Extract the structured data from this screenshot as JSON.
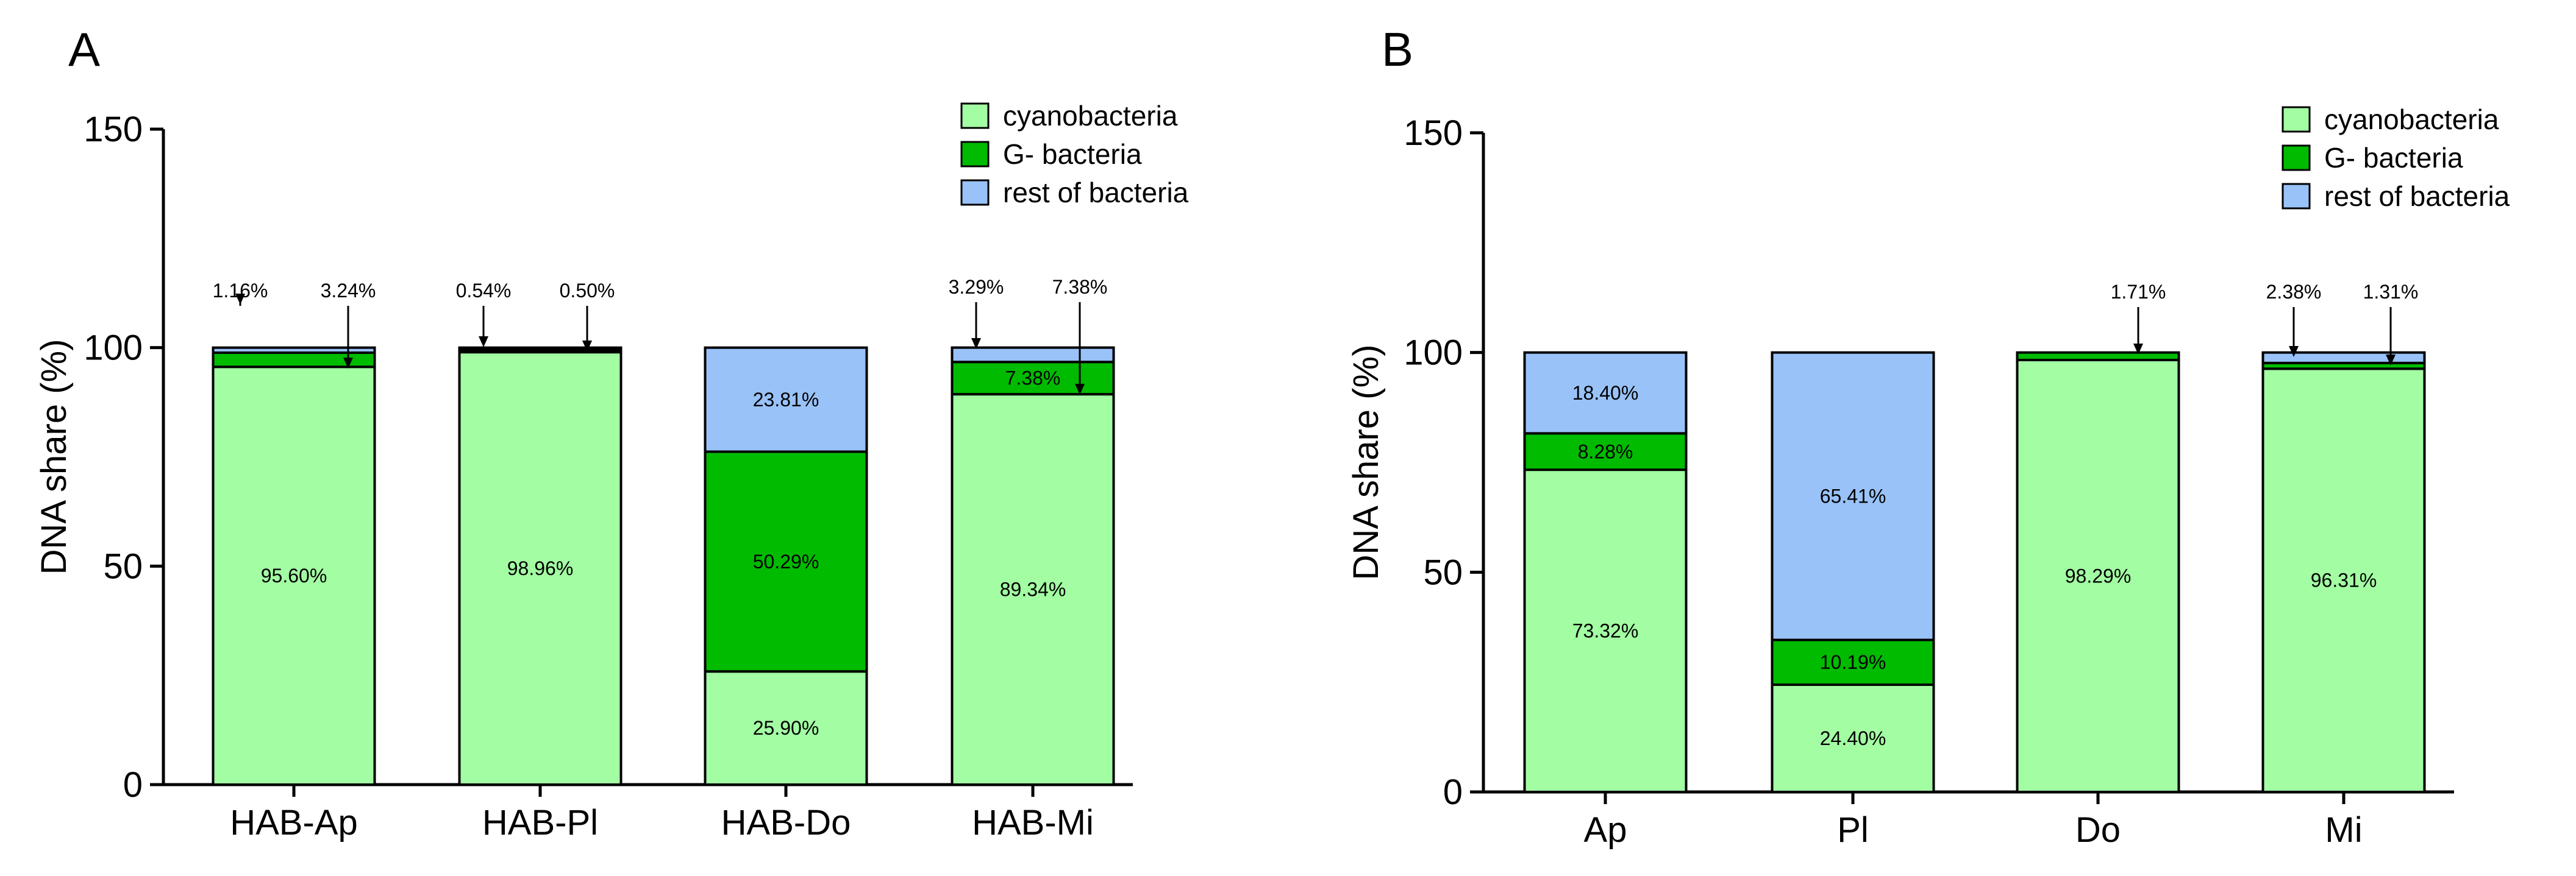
{
  "legend": {
    "items": [
      {
        "name": "cyanobacteria",
        "color": "#a3fda3"
      },
      {
        "name": "G- bacteria",
        "color": "#00bb00"
      },
      {
        "name": "rest of bacteria",
        "color": "#99c2f8"
      }
    ]
  },
  "chart_data": [
    {
      "type": "bar",
      "stacked": true,
      "panel": "A",
      "ylabel": "DNA share (%)",
      "xlabel": "",
      "ylim": [
        0,
        150
      ],
      "yticks": [
        "0",
        "50",
        "100",
        "150"
      ],
      "categories": [
        "HAB-Ap",
        "HAB-Pl",
        "HAB-Do",
        "HAB-Mi"
      ],
      "series": [
        {
          "name": "cyanobacteria",
          "values": [
            95.6,
            98.96,
            25.9,
            89.34
          ],
          "labels": [
            "95.60%",
            "98.96%",
            "25.90%",
            "89.34%"
          ]
        },
        {
          "name": "G- bacteria",
          "values": [
            3.24,
            0.5,
            50.29,
            7.38
          ],
          "labels": [
            "3.24%",
            "0.50%",
            "50.29%",
            "7.38%"
          ]
        },
        {
          "name": "rest of bacteria",
          "values": [
            1.16,
            0.54,
            23.81,
            3.29
          ],
          "labels": [
            "1.16%",
            "0.54%",
            "23.81%",
            "3.29%"
          ]
        }
      ]
    },
    {
      "type": "bar",
      "stacked": true,
      "panel": "B",
      "ylabel": "DNA share (%)",
      "xlabel": "",
      "ylim": [
        0,
        150
      ],
      "yticks": [
        "0",
        "50",
        "100",
        "150"
      ],
      "categories": [
        "Ap",
        "Pl",
        "Do",
        "Mi"
      ],
      "series": [
        {
          "name": "cyanobacteria",
          "values": [
            73.32,
            24.4,
            98.29,
            96.31
          ],
          "labels": [
            "73.32%",
            "24.40%",
            "98.29%",
            "96.31%"
          ]
        },
        {
          "name": "G- bacteria",
          "values": [
            8.28,
            10.19,
            1.71,
            1.31
          ],
          "labels": [
            "8.28%",
            "10.19%",
            "1.71%",
            "1.31%"
          ]
        },
        {
          "name": "rest of bacteria",
          "values": [
            18.4,
            65.41,
            0.0,
            2.38
          ],
          "labels": [
            "18.40%",
            "65.41%",
            "",
            "2.38%"
          ]
        }
      ]
    }
  ]
}
